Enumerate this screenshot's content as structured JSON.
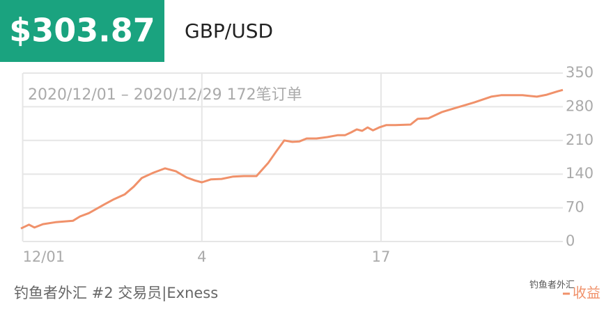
{
  "header": {
    "price": "$303.87",
    "pair": "GBP/USD"
  },
  "chart_data": {
    "type": "line",
    "title": "2020/12/01 – 2020/12/29 172笔订单",
    "x": [
      -0.1,
      0.35,
      0.66,
      1.13,
      1.83,
      2.8,
      3.2,
      3.7,
      4.55,
      5.1,
      5.7,
      6.2,
      6.65,
      7.3,
      7.95,
      8.55,
      9.15,
      9.6,
      10,
      10.5,
      11.1,
      11.75,
      12.35,
      13.05,
      13.7,
      14.15,
      14.6,
      15.05,
      15.45,
      15.85,
      16.4,
      17,
      17.6,
      18,
      18.35,
      18.65,
      18.95,
      19.25,
      19.55,
      19.9,
      20.3,
      20.8,
      21.65,
      22.05,
      22.65,
      23.4,
      24.2,
      25.2,
      26.15,
      26.7,
      27.3,
      27.9,
      28.7,
      29.25,
      29.85,
      30.15
    ],
    "series": [
      {
        "name": "收益",
        "color": "#f0916a",
        "values": [
          27,
          35,
          29,
          36,
          40,
          43,
          52,
          59,
          77,
          88,
          98,
          114,
          132,
          143,
          152,
          146,
          133,
          127,
          123,
          129,
          130,
          135,
          136,
          136,
          163,
          187,
          210,
          207,
          208,
          214,
          214,
          217,
          221,
          221,
          227,
          233,
          230,
          237,
          231,
          237,
          242,
          242,
          243,
          255,
          256,
          269,
          278,
          289,
          301,
          304,
          304,
          304,
          301,
          305,
          312,
          315
        ]
      }
    ],
    "xlim": [
      -0.1,
      30.15
    ],
    "ylim": [
      0,
      350
    ],
    "xticks": [
      {
        "value": 0,
        "label": "12/01"
      },
      {
        "value": 10,
        "label": "4"
      },
      {
        "value": 20,
        "label": "17"
      }
    ],
    "yticks": [
      0,
      70,
      140,
      210,
      280,
      350
    ],
    "grid": true
  },
  "footer": {
    "caption": "钓鱼者外汇 #2 交易员|Exness",
    "watermark": "钓鱼者外汇"
  }
}
